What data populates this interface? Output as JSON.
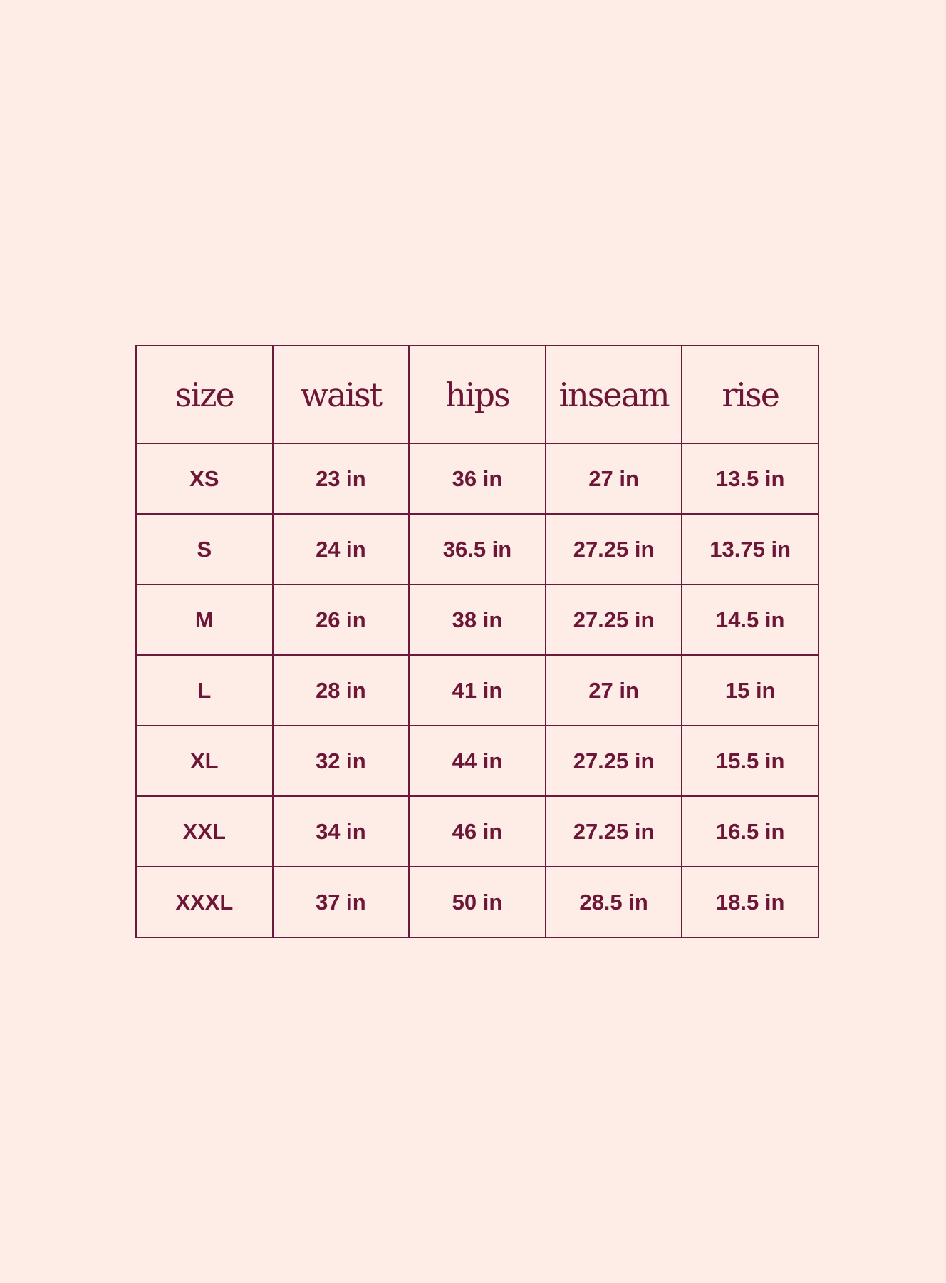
{
  "colors": {
    "background": "#fdede6",
    "line": "#6b1a3c",
    "text": "#6e1638"
  },
  "headers": [
    "size",
    "waist",
    "hips",
    "inseam",
    "rise"
  ],
  "rows": [
    [
      "XS",
      "23 in",
      "36 in",
      "27 in",
      "13.5 in"
    ],
    [
      "S",
      "24 in",
      "36.5 in",
      "27.25 in",
      "13.75 in"
    ],
    [
      "M",
      "26 in",
      "38 in",
      "27.25 in",
      "14.5 in"
    ],
    [
      "L",
      "28 in",
      "41 in",
      "27 in",
      "15 in"
    ],
    [
      "XL",
      "32 in",
      "44 in",
      "27.25 in",
      "15.5 in"
    ],
    [
      "XXL",
      "34 in",
      "46 in",
      "27.25 in",
      "16.5 in"
    ],
    [
      "XXXL",
      "37 in",
      "50 in",
      "28.5 in",
      "18.5 in"
    ]
  ]
}
